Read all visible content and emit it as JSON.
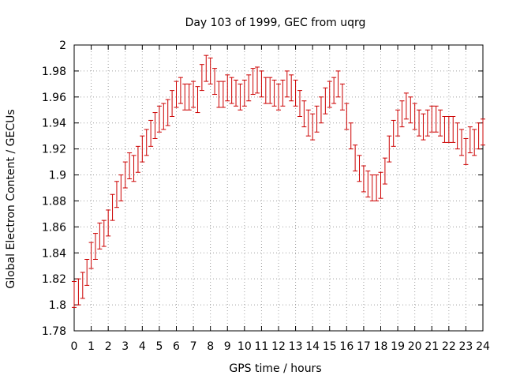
{
  "chart_data": {
    "type": "scatter",
    "title": "Day 103 of 1999, GEC from uqrg",
    "xlabel": "GPS time / hours",
    "ylabel": "Global Electron Content / GECUs",
    "xlim": [
      0,
      24
    ],
    "ylim": [
      1.78,
      2.0
    ],
    "xticks": [
      "0",
      "1",
      "2",
      "3",
      "4",
      "5",
      "6",
      "7",
      "8",
      "9",
      "10",
      "11",
      "12",
      "13",
      "14",
      "15",
      "16",
      "17",
      "18",
      "19",
      "20",
      "21",
      "22",
      "23",
      "24"
    ],
    "yticks": [
      "1.78",
      "1.8",
      "1.82",
      "1.84",
      "1.86",
      "1.88",
      "1.9",
      "1.92",
      "1.94",
      "1.96",
      "1.98",
      "2"
    ],
    "grid": true,
    "error_bar": 0.01,
    "color": "#cc0000",
    "series": [
      {
        "name": "GEC",
        "x": [
          0.0,
          0.25,
          0.5,
          0.75,
          1.0,
          1.25,
          1.5,
          1.75,
          2.0,
          2.25,
          2.5,
          2.75,
          3.0,
          3.25,
          3.5,
          3.75,
          4.0,
          4.25,
          4.5,
          4.75,
          5.0,
          5.25,
          5.5,
          5.75,
          6.0,
          6.25,
          6.5,
          6.75,
          7.0,
          7.25,
          7.5,
          7.75,
          8.0,
          8.25,
          8.5,
          8.75,
          9.0,
          9.25,
          9.5,
          9.75,
          10.0,
          10.25,
          10.5,
          10.75,
          11.0,
          11.25,
          11.5,
          11.75,
          12.0,
          12.25,
          12.5,
          12.75,
          13.0,
          13.25,
          13.5,
          13.75,
          14.0,
          14.25,
          14.5,
          14.75,
          15.0,
          15.25,
          15.5,
          15.75,
          16.0,
          16.25,
          16.5,
          16.75,
          17.0,
          17.25,
          17.5,
          17.75,
          18.0,
          18.25,
          18.5,
          18.75,
          19.0,
          19.25,
          19.5,
          19.75,
          20.0,
          20.25,
          20.5,
          20.75,
          21.0,
          21.25,
          21.5,
          21.75,
          22.0,
          22.25,
          22.5,
          22.75,
          23.0,
          23.25,
          23.5,
          23.75,
          24.0
        ],
        "y": [
          1.808,
          1.81,
          1.815,
          1.825,
          1.838,
          1.845,
          1.853,
          1.855,
          1.863,
          1.875,
          1.885,
          1.89,
          1.9,
          1.907,
          1.905,
          1.912,
          1.92,
          1.925,
          1.932,
          1.938,
          1.943,
          1.945,
          1.948,
          1.955,
          1.962,
          1.965,
          1.96,
          1.96,
          1.962,
          1.958,
          1.975,
          1.982,
          1.98,
          1.972,
          1.962,
          1.962,
          1.967,
          1.965,
          1.963,
          1.96,
          1.963,
          1.967,
          1.972,
          1.973,
          1.97,
          1.965,
          1.965,
          1.963,
          1.96,
          1.963,
          1.97,
          1.967,
          1.963,
          1.955,
          1.947,
          1.94,
          1.937,
          1.943,
          1.95,
          1.957,
          1.962,
          1.965,
          1.97,
          1.96,
          1.945,
          1.93,
          1.913,
          1.905,
          1.897,
          1.893,
          1.89,
          1.89,
          1.892,
          1.903,
          1.92,
          1.932,
          1.94,
          1.947,
          1.953,
          1.95,
          1.945,
          1.94,
          1.937,
          1.94,
          1.943,
          1.943,
          1.94,
          1.935,
          1.935,
          1.935,
          1.93,
          1.925,
          1.918,
          1.927,
          1.925,
          1.93,
          1.933
        ]
      }
    ]
  }
}
